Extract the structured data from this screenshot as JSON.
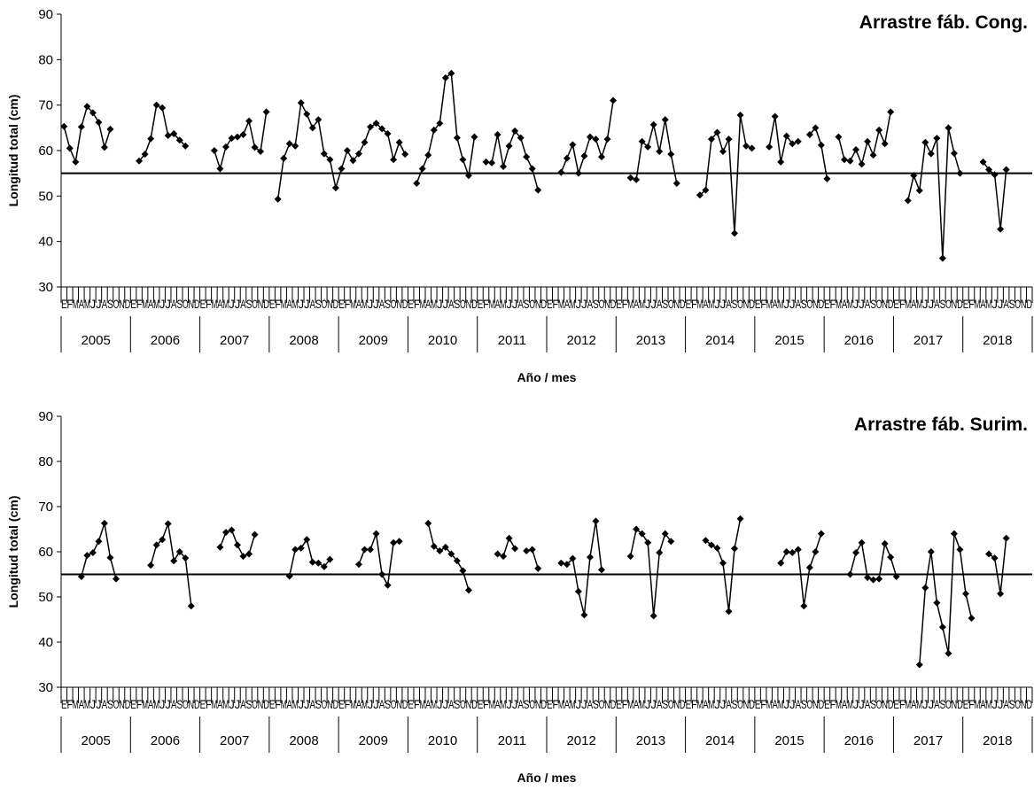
{
  "chart_data": [
    {
      "type": "line",
      "title": "Arrastre fáb. Cong.",
      "ylabel": "Longitud total (cm)",
      "xlabel": "Año / mes",
      "ylim": [
        30,
        90
      ],
      "yticks": [
        30,
        40,
        50,
        60,
        70,
        80,
        90
      ],
      "years": [
        "2005",
        "2006",
        "2007",
        "2008",
        "2009",
        "2010",
        "2011",
        "2012",
        "2013",
        "2014",
        "2015",
        "2016",
        "2017",
        "2018"
      ],
      "month_labels": [
        "E",
        "F",
        "M",
        "A",
        "M",
        "J",
        "J",
        "A",
        "S",
        "O",
        "N",
        "D"
      ],
      "reference_line": 55,
      "x_format": "month index 0-167 from Jan 2005",
      "segments": [
        {
          "start": 0,
          "values": [
            65.3,
            60.5,
            57.5,
            65.2,
            69.7,
            68.3,
            66.2,
            60.7,
            64.7
          ]
        },
        {
          "start": 13,
          "values": [
            57.7,
            59.2,
            62.6,
            70.0,
            69.4,
            63.3,
            63.7,
            62.3,
            61.0
          ]
        },
        {
          "start": 26,
          "values": [
            60.0,
            56.0,
            60.8,
            62.7,
            63.0,
            63.5,
            66.5,
            60.7,
            59.8,
            68.5
          ]
        },
        {
          "start": 37,
          "values": [
            49.3,
            58.3,
            61.5,
            61.0,
            70.5,
            68.0,
            65.0,
            66.8,
            59.3,
            58.0,
            51.8,
            56.0,
            60.0,
            57.8,
            59.3,
            61.8,
            65.2,
            66.0,
            64.8,
            63.7,
            58.0,
            61.8,
            59.2
          ]
        },
        {
          "start": 61,
          "values": [
            52.8,
            56.0,
            59.0,
            64.5,
            66.0,
            76.0,
            77.0,
            62.8,
            58.0,
            54.5,
            63.0
          ]
        },
        {
          "start": 73,
          "values": [
            57.5,
            57.3,
            63.5,
            56.5,
            61.0,
            64.3,
            62.8,
            58.6,
            56.0,
            51.3
          ]
        },
        {
          "start": 86,
          "values": [
            55.2,
            58.3,
            61.3,
            55.0,
            58.8,
            63.0,
            62.5,
            58.6,
            62.5,
            71.0
          ]
        },
        {
          "start": 98,
          "values": [
            54.0,
            53.6,
            62.0,
            60.8,
            65.7,
            59.8,
            66.8,
            59.2,
            52.8
          ]
        },
        {
          "start": 110,
          "values": [
            50.2,
            51.3,
            62.5,
            64.0,
            59.8,
            62.5,
            41.8,
            67.8,
            61.0,
            60.5
          ]
        },
        {
          "start": 122,
          "values": [
            60.8,
            67.5,
            57.5,
            63.2,
            61.5,
            62.0
          ]
        },
        {
          "start": 129,
          "values": [
            63.5,
            65.0,
            61.2,
            53.8
          ]
        },
        {
          "start": 134,
          "values": [
            63.0,
            58.0,
            57.7,
            60.2,
            57.0,
            62.0,
            59.0,
            64.5,
            61.5,
            68.5
          ]
        },
        {
          "start": 146,
          "values": [
            49.0,
            54.5,
            51.2,
            61.8,
            59.3,
            62.7,
            36.3,
            65.0,
            59.4,
            55.0
          ]
        },
        {
          "start": 159,
          "values": [
            57.5,
            55.8,
            54.7,
            42.7,
            55.8
          ]
        }
      ]
    },
    {
      "type": "line",
      "title": "Arrastre fáb. Surim.",
      "ylabel": "Longitud total (cm)",
      "xlabel": "Año / mes",
      "ylim": [
        30,
        90
      ],
      "yticks": [
        30,
        40,
        50,
        60,
        70,
        80,
        90
      ],
      "years": [
        "2005",
        "2006",
        "2007",
        "2008",
        "2009",
        "2010",
        "2011",
        "2012",
        "2013",
        "2014",
        "2015",
        "2016",
        "2017",
        "2018"
      ],
      "month_labels": [
        "E",
        "F",
        "M",
        "A",
        "M",
        "J",
        "J",
        "A",
        "S",
        "O",
        "N",
        "D"
      ],
      "reference_line": 55,
      "x_format": "month index 0-167 from Jan 2005",
      "segments": [
        {
          "start": 3,
          "values": [
            54.5,
            59.2,
            59.8,
            62.3,
            66.3,
            58.7,
            54.0
          ]
        },
        {
          "start": 15,
          "values": [
            57.0,
            61.5,
            62.7,
            66.2,
            58.0,
            60.0,
            58.6,
            48.0
          ]
        },
        {
          "start": 27,
          "values": [
            61.0,
            64.3,
            64.8,
            61.5,
            59.0,
            59.5,
            63.8
          ]
        },
        {
          "start": 39,
          "values": [
            54.6,
            60.5,
            60.8,
            62.7,
            57.7,
            57.5,
            56.7,
            58.3
          ]
        },
        {
          "start": 51,
          "values": [
            57.2,
            60.5,
            60.5,
            64.0,
            55.0,
            52.6,
            62.0,
            62.3
          ]
        },
        {
          "start": 63,
          "values": [
            66.3,
            61.2,
            60.2,
            61.0,
            59.5,
            58.0,
            55.8,
            51.5
          ]
        },
        {
          "start": 75,
          "values": [
            59.5,
            59.0,
            63.0,
            60.7
          ]
        },
        {
          "start": 80,
          "values": [
            60.2,
            60.5,
            56.3
          ]
        },
        {
          "start": 86,
          "values": [
            57.5,
            57.2,
            58.5,
            51.2,
            46.0,
            58.8,
            66.8,
            56.0
          ]
        },
        {
          "start": 98,
          "values": [
            59.0,
            65.0,
            64.0,
            62.0,
            45.8,
            59.8,
            64.0,
            62.3
          ]
        },
        {
          "start": 111,
          "values": [
            62.5,
            61.5,
            60.8,
            57.5,
            46.8,
            60.7,
            67.3
          ]
        },
        {
          "start": 124,
          "values": [
            57.5,
            60.0,
            59.8,
            60.5,
            48.0,
            56.5,
            60.0,
            64.0
          ]
        },
        {
          "start": 136,
          "values": [
            55.0,
            59.8,
            62.0,
            54.3,
            53.8,
            54.0,
            61.8,
            58.8,
            54.5
          ]
        },
        {
          "start": 148,
          "values": [
            35.0,
            52.0,
            60.0,
            48.7,
            43.3,
            37.5,
            64.0,
            60.5,
            50.7,
            45.3
          ]
        },
        {
          "start": 160,
          "values": [
            59.5,
            58.6,
            50.7,
            63.0
          ]
        }
      ]
    }
  ]
}
